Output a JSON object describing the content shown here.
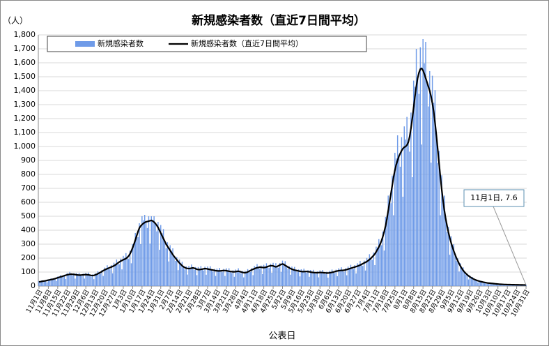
{
  "chart_data": {
    "type": "bar",
    "title": "新規感染者数（直近7日間平均）",
    "y_unit": "（人）",
    "x_label": "公表日",
    "annotation": "11月1日, 7.6",
    "grid": true,
    "legend": "top-left",
    "ylim": [
      0,
      1800
    ],
    "yticks": [
      0,
      100,
      200,
      300,
      400,
      500,
      600,
      700,
      800,
      900,
      {
        "value": 1000,
        "label": "1,000"
      },
      {
        "value": 1100,
        "label": "1,100"
      },
      {
        "value": 1200,
        "label": "1,200"
      },
      {
        "value": 1300,
        "label": "1,300"
      },
      {
        "value": 1400,
        "label": "1,400"
      },
      {
        "value": 1500,
        "label": "1,500"
      },
      {
        "value": 1600,
        "label": "1,600"
      },
      {
        "value": 1700,
        "label": "1,700"
      },
      {
        "value": 1800,
        "label": "1,800"
      }
    ],
    "categories": [
      "11月1日",
      null,
      null,
      null,
      null,
      null,
      null,
      "11月8日",
      null,
      null,
      null,
      null,
      null,
      null,
      "11月15日",
      null,
      null,
      null,
      null,
      null,
      null,
      "11月22日",
      null,
      null,
      null,
      null,
      null,
      null,
      "11月29日",
      null,
      null,
      null,
      null,
      null,
      null,
      "12月6日",
      null,
      null,
      null,
      null,
      null,
      null,
      "12月13日",
      null,
      null,
      null,
      null,
      null,
      null,
      "12月20日",
      null,
      null,
      null,
      null,
      null,
      null,
      "12月27日",
      null,
      null,
      null,
      null,
      null,
      null,
      "1月3日",
      null,
      null,
      null,
      null,
      null,
      null,
      "1月10日",
      null,
      null,
      null,
      null,
      null,
      null,
      "1月17日",
      null,
      null,
      null,
      null,
      null,
      null,
      "1月24日",
      null,
      null,
      null,
      null,
      null,
      null,
      "1月31日",
      null,
      null,
      null,
      null,
      null,
      null,
      "2月7日",
      null,
      null,
      null,
      null,
      null,
      null,
      "2月14日",
      null,
      null,
      null,
      null,
      null,
      null,
      "2月21日",
      null,
      null,
      null,
      null,
      null,
      null,
      "2月28日",
      null,
      null,
      null,
      null,
      null,
      null,
      "3月7日",
      null,
      null,
      null,
      null,
      null,
      null,
      "3月14日",
      null,
      null,
      null,
      null,
      null,
      null,
      "3月21日",
      null,
      null,
      null,
      null,
      null,
      null,
      "3月28日",
      null,
      null,
      null,
      null,
      null,
      null,
      "4月4日",
      null,
      null,
      null,
      null,
      null,
      null,
      "4月11日",
      null,
      null,
      null,
      null,
      null,
      null,
      "4月18日",
      null,
      null,
      null,
      null,
      null,
      null,
      "4月25日",
      null,
      null,
      null,
      null,
      null,
      null,
      "5月2日",
      null,
      null,
      null,
      null,
      null,
      null,
      "5月9日",
      null,
      null,
      null,
      null,
      null,
      null,
      "5月16日",
      null,
      null,
      null,
      null,
      null,
      null,
      "5月23日",
      null,
      null,
      null,
      null,
      null,
      null,
      "5月30日",
      null,
      null,
      null,
      null,
      null,
      null,
      "6月6日",
      null,
      null,
      null,
      null,
      null,
      null,
      "6月13日",
      null,
      null,
      null,
      null,
      null,
      null,
      "6月20日",
      null,
      null,
      null,
      null,
      null,
      null,
      "6月27日",
      null,
      null,
      null,
      null,
      null,
      null,
      "7月4日",
      null,
      null,
      null,
      null,
      null,
      null,
      "7月11日",
      null,
      null,
      null,
      null,
      null,
      null,
      "7月18日",
      null,
      null,
      null,
      null,
      null,
      null,
      "7月25日",
      null,
      null,
      null,
      null,
      null,
      null,
      "8月1日",
      null,
      null,
      null,
      null,
      null,
      null,
      "8月8日",
      null,
      null,
      null,
      null,
      null,
      null,
      "8月15日",
      null,
      null,
      null,
      null,
      null,
      null,
      "8月22日",
      null,
      null,
      null,
      null,
      null,
      null,
      "8月29日",
      null,
      null,
      null,
      null,
      null,
      null,
      "9月5日",
      null,
      null,
      null,
      null,
      null,
      null,
      "9月12日",
      null,
      null,
      null,
      null,
      null,
      null,
      "9月19日",
      null,
      null,
      null,
      null,
      null,
      null,
      "9月26日",
      null,
      null,
      null,
      null,
      null,
      null,
      "10月3日",
      null,
      null,
      null,
      null,
      null,
      null,
      "10月10日",
      null,
      null,
      null,
      null,
      null,
      null,
      "10月17日",
      null,
      null,
      null,
      null,
      null,
      null,
      "10月24日",
      null,
      null,
      null,
      null,
      null,
      null,
      "10月31日"
    ],
    "series": [
      {
        "name": "新規感染者数",
        "type": "bar",
        "color": "#6f9be8",
        "values": [
          35,
          33,
          40,
          35,
          32,
          42,
          26,
          48,
          46,
          55,
          48,
          45,
          58,
          36,
          68,
          65,
          78,
          68,
          64,
          81,
          50,
          92,
          86,
          101,
          85,
          76,
          91,
          53,
          92,
          83,
          94,
          78,
          71,
          88,
          53,
          94,
          85,
          96,
          78,
          68,
          83,
          49,
          91,
          87,
          106,
          93,
          88,
          114,
          72,
          132,
          126,
          149,
          128,
          119,
          150,
          91,
          167,
          158,
          190,
          165,
          155,
          196,
          119,
          216,
          202,
          236,
          205,
          194,
          253,
          163,
          300,
          310,
          380,
          360,
          350,
          450,
          300,
          500,
          470,
          510,
          460,
          416,
          500,
          304,
          500,
          470,
          500,
          448,
          392,
          460,
          260,
          437,
          378,
          408,
          320,
          270,
          314,
          176,
          293,
          252,
          270,
          212,
          180,
          207,
          114,
          190,
          163,
          174,
          138,
          119,
          141,
          82,
          144,
          132,
          154,
          130,
          115,
          136,
          78,
          136,
          124,
          143,
          121,
          111,
          138,
          81,
          140,
          126,
          142,
          116,
          103,
          123,
          72,
          125,
          113,
          130,
          109,
          99,
          122,
          72,
          127,
          113,
          127,
          104,
          93,
          112,
          66,
          118,
          110,
          127,
          104,
          91,
          108,
          62,
          109,
          102,
          121,
          106,
          100,
          128,
          78,
          143,
          134,
          157,
          133,
          122,
          147,
          86,
          152,
          140,
          163,
          140,
          129,
          160,
          95,
          166,
          147,
          164,
          140,
          131,
          165,
          101,
          182,
          162,
          178,
          142,
          122,
          143,
          81,
          139,
          123,
          137,
          112,
          99,
          119,
          69,
          120,
          108,
          124,
          104,
          94,
          113,
          66,
          115,
          103,
          116,
          96,
          86,
          105,
          62,
          112,
          102,
          115,
          95,
          85,
          102,
          60,
          108,
          101,
          118,
          100,
          93,
          117,
          70,
          127,
          117,
          134,
          112,
          102,
          127,
          77,
          139,
          130,
          152,
          130,
          120,
          150,
          90,
          163,
          153,
          180,
          155,
          144,
          182,
          111,
          201,
          191,
          228,
          198,
          187,
          240,
          150,
          282,
          275,
          336,
          300,
          293,
          391,
          254,
          495,
          504,
          648,
          600,
          594,
          792,
          507,
          955,
          914,
          1080,
          930,
          855,
          1067,
          640,
          1144,
          1050,
          1212,
          1030,
          963,
          1243,
          780,
          1472,
          1428,
          1700,
          1490,
          1377,
          1711,
          1014,
          1770,
          1596,
          1750,
          1460,
          1287,
          1540,
          884,
          1507,
          1313,
          1404,
          1080,
          882,
          968,
          507,
          794,
          641,
          648,
          480,
          387,
          424,
          224,
          357,
          294,
          300,
          225,
          180,
          198,
          104,
          163,
          132,
          134,
          100,
          81,
          89,
          47,
          76,
          63,
          65,
          49,
          41,
          45,
          25,
          40,
          34,
          36,
          28,
          23,
          26,
          14,
          24,
          21,
          23,
          18,
          15,
          18,
          10,
          16,
          14,
          15,
          12,
          10,
          12,
          7,
          12,
          11,
          12,
          10,
          9,
          10,
          6,
          10,
          9,
          10,
          8,
          7,
          9,
          5,
          9
        ]
      },
      {
        "name": "新規感染者数（直近7日間平均）",
        "type": "line",
        "color": "#000000",
        "values": [
          30,
          31,
          33,
          35,
          36,
          38,
          40,
          42,
          44,
          46,
          48,
          50,
          53,
          56,
          59,
          62,
          65,
          68,
          71,
          74,
          77,
          80,
          82,
          84,
          85,
          84,
          83,
          82,
          80,
          79,
          78,
          78,
          79,
          80,
          81,
          82,
          81,
          80,
          78,
          76,
          75,
          76,
          79,
          83,
          88,
          93,
          98,
          104,
          110,
          115,
          120,
          124,
          128,
          132,
          136,
          140,
          145,
          150,
          158,
          165,
          172,
          178,
          183,
          188,
          192,
          197,
          205,
          215,
          230,
          250,
          275,
          300,
          330,
          360,
          390,
          415,
          430,
          440,
          448,
          455,
          460,
          462,
          465,
          468,
          470,
          466,
          458,
          448,
          435,
          420,
          400,
          380,
          360,
          340,
          320,
          300,
          285,
          270,
          255,
          240,
          225,
          212,
          200,
          188,
          176,
          165,
          155,
          145,
          138,
          132,
          128,
          126,
          125,
          126,
          128,
          130,
          128,
          124,
          120,
          118,
          118,
          119,
          121,
          123,
          125,
          124,
          122,
          120,
          118,
          116,
          114,
          112,
          110,
          109,
          108,
          108,
          109,
          110,
          111,
          111,
          110,
          108,
          106,
          104,
          103,
          102,
          102,
          103,
          105,
          106,
          104,
          101,
          98,
          96,
          95,
          97,
          101,
          106,
          111,
          116,
          120,
          124,
          128,
          131,
          133,
          135,
          134,
          133,
          132,
          133,
          136,
          140,
          143,
          145,
          146,
          144,
          140,
          137,
          140,
          145,
          150,
          155,
          158,
          154,
          148,
          142,
          136,
          130,
          125,
          121,
          117,
          114,
          112,
          110,
          108,
          106,
          104,
          103,
          103,
          104,
          104,
          103,
          102,
          100,
          98,
          97,
          96,
          95,
          95,
          96,
          97,
          97,
          96,
          95,
          94,
          93,
          93,
          94,
          96,
          98,
          100,
          103,
          106,
          108,
          110,
          111,
          112,
          112,
          113,
          115,
          118,
          121,
          124,
          127,
          130,
          133,
          136,
          139,
          142,
          146,
          150,
          155,
          160,
          165,
          170,
          175,
          182,
          190,
          198,
          208,
          218,
          230,
          245,
          262,
          280,
          300,
          325,
          355,
          390,
          430,
          480,
          540,
          600,
          660,
          720,
          780,
          830,
          870,
          900,
          930,
          950,
          970,
          985,
          995,
          1000,
          1010,
          1030,
          1070,
          1130,
          1200,
          1280,
          1360,
          1430,
          1490,
          1530,
          1555,
          1560,
          1545,
          1520,
          1490,
          1460,
          1430,
          1400,
          1360,
          1310,
          1250,
          1170,
          1080,
          980,
          880,
          780,
          690,
          610,
          540,
          480,
          430,
          385,
          345,
          310,
          280,
          250,
          225,
          200,
          180,
          160,
          142,
          126,
          112,
          100,
          90,
          81,
          73,
          66,
          60,
          54,
          49,
          45,
          41,
          38,
          35,
          32,
          30,
          28,
          26,
          24,
          22,
          21,
          20,
          19,
          18,
          17,
          16,
          15,
          14,
          13,
          12.5,
          12,
          11.5,
          11,
          10.7,
          10.4,
          10.1,
          9.9,
          9.7,
          9.5,
          9.3,
          9.1,
          8.9,
          8.7,
          8.5,
          8.3,
          8.1,
          7.9,
          7.7,
          7.6
        ]
      }
    ]
  }
}
